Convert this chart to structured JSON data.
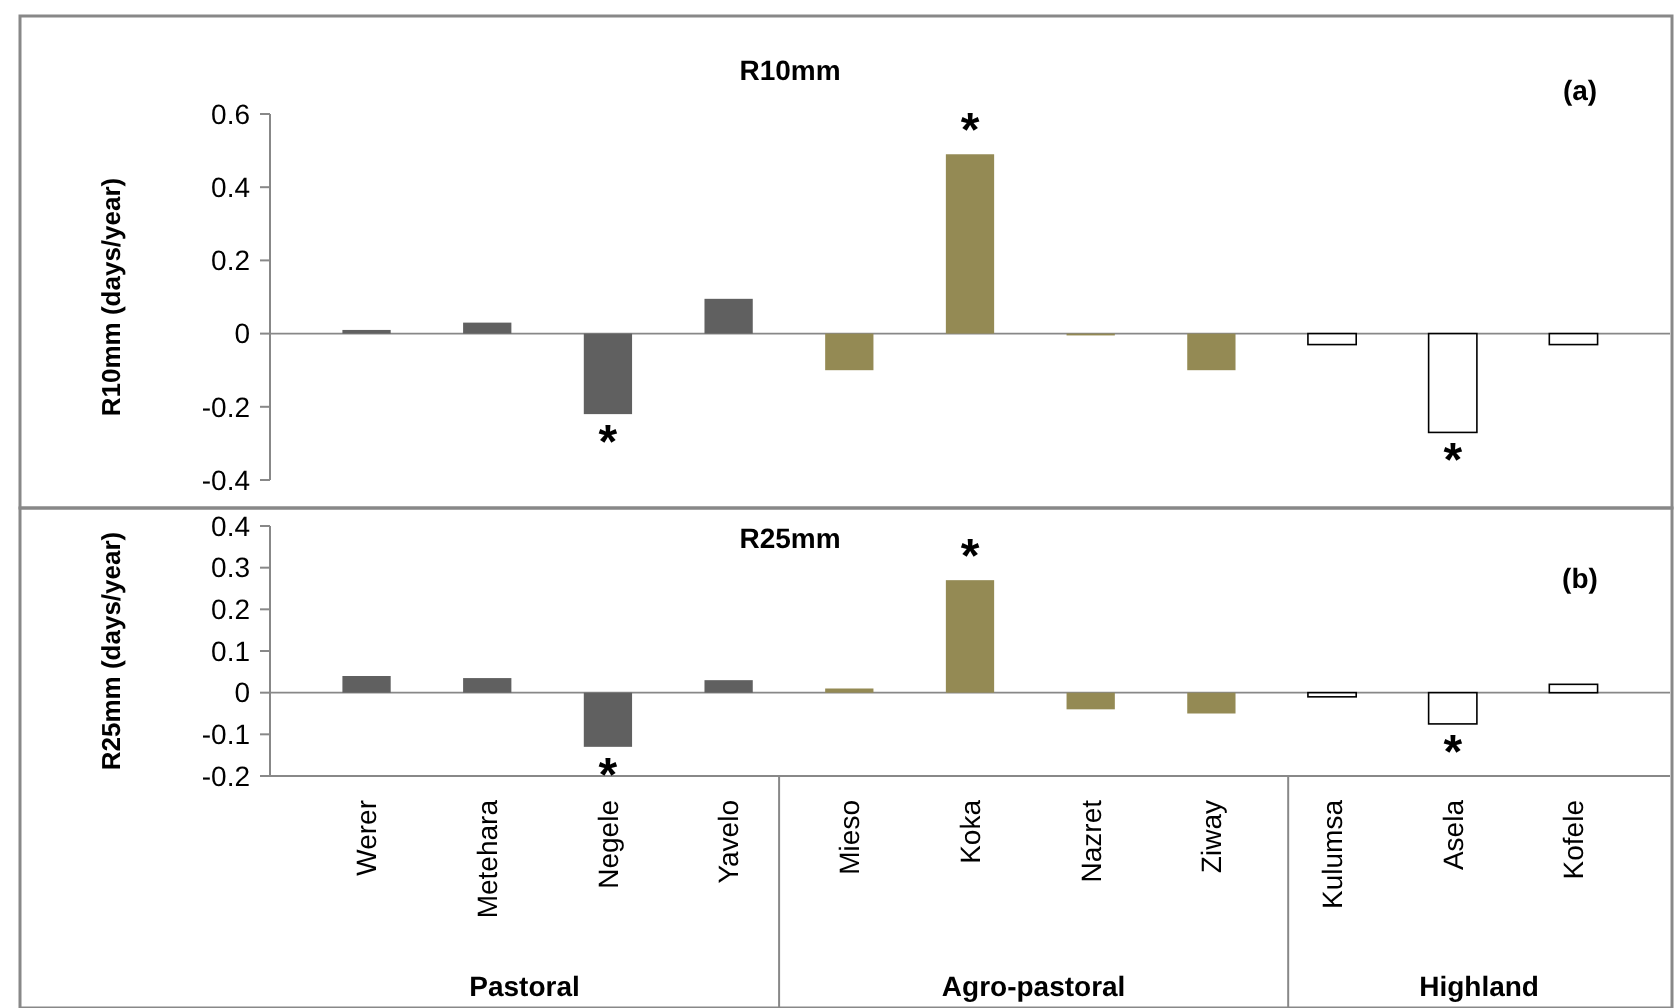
{
  "chart_data": [
    {
      "type": "bar",
      "title": "R10mm",
      "ylabel": "R10mm (days/year)",
      "categories": [
        "Werer",
        "Metehara",
        "Negele",
        "Yavelo",
        "Mieso",
        "Koka",
        "Nazret",
        "Ziway",
        "Kulumsa",
        "Asela",
        "Kofele"
      ],
      "values": [
        0.01,
        0.03,
        -0.22,
        0.095,
        -0.1,
        0.49,
        -0.005,
        -0.1,
        -0.03,
        -0.27,
        -0.03
      ],
      "colors": [
        "#606060",
        "#606060",
        "#606060",
        "#606060",
        "#948a54",
        "#948a54",
        "#948a54",
        "#948a54",
        "#ffffff",
        "#ffffff",
        "#ffffff"
      ],
      "ylim": [
        -0.4,
        0.6
      ],
      "yticks": [
        -0.4,
        -0.2,
        0,
        0.2,
        0.4,
        0.6
      ],
      "tick_labels": "y",
      "annotations": [
        "(a)",
        {
          "text": "*",
          "x": "Negele",
          "y": -0.22
        },
        {
          "text": "*",
          "x": "Koka",
          "y": 0.49
        },
        {
          "text": "*",
          "x": "Asela",
          "y": -0.27
        }
      ]
    },
    {
      "type": "bar",
      "title": "R25mm",
      "ylabel": "R25mm (days/year)",
      "categories": [
        "Werer",
        "Metehara",
        "Negele",
        "Yavelo",
        "Mieso",
        "Koka",
        "Nazret",
        "Ziway",
        "Kulumsa",
        "Asela",
        "Kofele"
      ],
      "values": [
        0.04,
        0.035,
        -0.13,
        0.03,
        0.01,
        0.27,
        -0.04,
        -0.05,
        -0.01,
        -0.075,
        0.02
      ],
      "colors": [
        "#606060",
        "#606060",
        "#606060",
        "#606060",
        "#948a54",
        "#948a54",
        "#948a54",
        "#948a54",
        "#ffffff",
        "#ffffff",
        "#ffffff"
      ],
      "ylim": [
        -0.2,
        0.4
      ],
      "yticks": [
        -0.2,
        -0.1,
        0,
        0.1,
        0.2,
        0.3,
        0.4
      ],
      "annotations": [
        "(b)",
        "Pastoral",
        "Agro-pastoral",
        "Highland",
        {
          "text": "*",
          "x": "Negele",
          "y": -0.13
        },
        {
          "text": "*",
          "x": "Koka",
          "y": 0.27
        },
        {
          "text": "*",
          "x": "Asela",
          "y": -0.075
        }
      ]
    }
  ]
}
